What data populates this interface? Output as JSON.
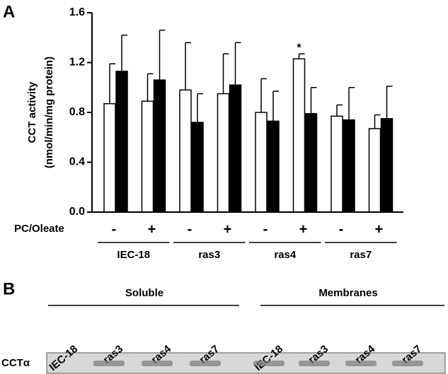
{
  "panel_a_label": "A",
  "chart_data": {
    "type": "bar",
    "y_label": [
      "CCT activity",
      "(nmol/min/mg protein)"
    ],
    "row_label": "PC/Oleate",
    "categories": [
      "-",
      "+",
      "-",
      "+",
      "-",
      "+",
      "-",
      "+"
    ],
    "groups": [
      "IEC-18",
      "ras3",
      "ras4",
      "ras7"
    ],
    "series": [
      {
        "color": "#ffffff",
        "values": [
          0.87,
          0.89,
          0.98,
          0.95,
          0.8,
          1.23,
          0.77,
          0.67
        ],
        "error": [
          0.32,
          0.22,
          0.38,
          0.32,
          0.27,
          0.04,
          0.09,
          0.11
        ]
      },
      {
        "color": "#000000",
        "values": [
          1.13,
          1.06,
          0.72,
          1.02,
          0.73,
          0.79,
          0.74,
          0.75
        ],
        "error": [
          0.29,
          0.4,
          0.23,
          0.34,
          0.24,
          0.21,
          0.26,
          0.26
        ]
      }
    ],
    "annotation": "*",
    "ylim": [
      0,
      1.6
    ],
    "yticks": [
      {
        "value": 0,
        "label": "0.0"
      },
      0.4,
      0.8,
      1.2,
      1.6
    ]
  },
  "panel_b": {
    "label": "B",
    "headers": [
      "Soluble",
      "Membranes"
    ],
    "lanes": [
      "IEC-18",
      "ras3",
      "ras4",
      "ras7",
      "IEC-18",
      "ras3",
      "ras4",
      "ras7"
    ],
    "row_label": "CCTα"
  }
}
